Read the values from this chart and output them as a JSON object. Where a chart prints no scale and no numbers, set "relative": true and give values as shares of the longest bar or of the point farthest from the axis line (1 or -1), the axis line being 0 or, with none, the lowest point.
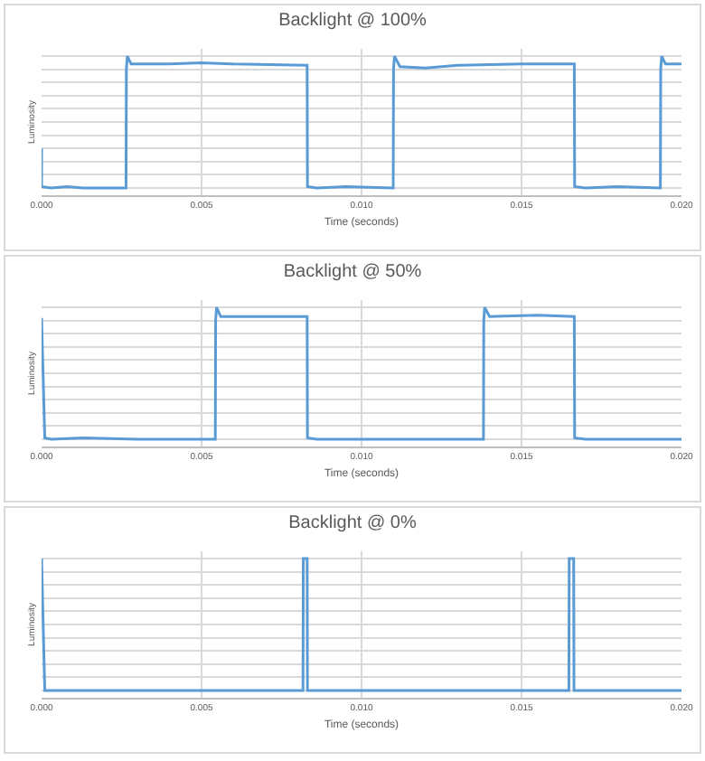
{
  "chart_data": [
    {
      "type": "line",
      "title": "Backlight @ 100%",
      "xlabel": "Time (seconds)",
      "ylabel": "Luminosity",
      "relative": true,
      "grid": true,
      "xlim": [
        0,
        0.02
      ],
      "xticks": [
        {
          "value": 0,
          "label": "0.000"
        },
        {
          "value": 0.005,
          "label": "0.005"
        },
        {
          "value": 0.01,
          "label": "0.010"
        },
        {
          "value": 0.015,
          "label": "0.015"
        },
        {
          "value": 0.02,
          "label": "0.020"
        }
      ],
      "marker": "none",
      "line_style": "solid",
      "series": [
        {
          "color": "#5b9bd5",
          "x": [
            0,
            0,
            0.0003,
            0.0008,
            0.0013,
            0.00264,
            0.00265,
            0.00268,
            0.0028,
            0.004,
            0.005,
            0.006,
            0.0083,
            0.00831,
            0.0086,
            0.0095,
            0.01099,
            0.011,
            0.01103,
            0.0112,
            0.012,
            0.013,
            0.015,
            0.01665,
            0.01666,
            0.017,
            0.018,
            0.01934,
            0.01935,
            0.01938,
            0.0195,
            0.02
          ],
          "values": [
            0.3,
            0.01,
            0,
            0.01,
            0,
            0,
            0.9,
            1,
            0.94,
            0.94,
            0.95,
            0.94,
            0.93,
            0.01,
            0,
            0.01,
            0,
            0.9,
            1,
            0.92,
            0.91,
            0.93,
            0.94,
            0.94,
            0.01,
            0,
            0.01,
            0,
            0.9,
            1,
            0.94,
            0.94
          ]
        }
      ]
    },
    {
      "type": "line",
      "title": "Backlight @ 50%",
      "xlabel": "Time (seconds)",
      "ylabel": "Luminosity",
      "relative": true,
      "grid": true,
      "xlim": [
        0,
        0.02
      ],
      "xticks": [
        {
          "value": 0,
          "label": "0.000"
        },
        {
          "value": 0.005,
          "label": "0.005"
        },
        {
          "value": 0.01,
          "label": "0.010"
        },
        {
          "value": 0.015,
          "label": "0.015"
        },
        {
          "value": 0.02,
          "label": "0.020"
        }
      ],
      "marker": "none",
      "line_style": "solid",
      "series": [
        {
          "color": "#5b9bd5",
          "x": [
            0,
            0.0001,
            0.0003,
            0.0013,
            0.003,
            0.00543,
            0.00544,
            0.00547,
            0.0056,
            0.007,
            0.0083,
            0.00831,
            0.0086,
            0.012,
            0.01381,
            0.01382,
            0.01385,
            0.014,
            0.0155,
            0.01665,
            0.01666,
            0.017,
            0.02
          ],
          "values": [
            0.92,
            0.01,
            0,
            0.01,
            0,
            0,
            0.9,
            1,
            0.93,
            0.93,
            0.93,
            0.01,
            0,
            0,
            0,
            0.9,
            1,
            0.93,
            0.94,
            0.93,
            0.01,
            0,
            0
          ]
        }
      ]
    },
    {
      "type": "line",
      "title": "Backlight @ 0%",
      "xlabel": "Time (seconds)",
      "ylabel": "Luminosity",
      "relative": true,
      "grid": true,
      "xlim": [
        0,
        0.02
      ],
      "xticks": [
        {
          "value": 0,
          "label": "0.000"
        },
        {
          "value": 0.005,
          "label": "0.005"
        },
        {
          "value": 0.01,
          "label": "0.010"
        },
        {
          "value": 0.015,
          "label": "0.015"
        },
        {
          "value": 0.02,
          "label": "0.020"
        }
      ],
      "marker": "none",
      "line_style": "solid",
      "series": [
        {
          "color": "#5b9bd5",
          "x": [
            0,
            0.0001,
            0.005,
            0.00817,
            0.00818,
            0.0083,
            0.00831,
            0.012,
            0.01648,
            0.01649,
            0.01663,
            0.01664,
            0.02
          ],
          "values": [
            1,
            0,
            0,
            0,
            1,
            1,
            0,
            0,
            0,
            1,
            1,
            0,
            0
          ]
        }
      ]
    }
  ]
}
